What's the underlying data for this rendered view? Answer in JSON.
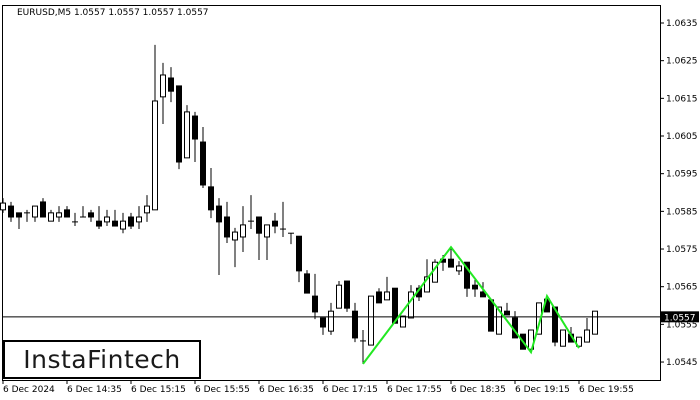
{
  "chart_data": {
    "type": "candlestick",
    "title": "EURUSD,M5  1.0557 1.0557 1.0557 1.0557",
    "symbol": "EURUSD",
    "timeframe": "M5",
    "ylim": [
      1.0541,
      1.064
    ],
    "y_ticks": [
      "1.0635",
      "1.0625",
      "1.0615",
      "1.0605",
      "1.0595",
      "1.0585",
      "1.0575",
      "1.0565",
      "1.0555",
      "1.0545"
    ],
    "x_tick_labels": [
      "6 Dec 2024",
      "6 Dec 14:35",
      "6 Dec 15:15",
      "6 Dec 15:55",
      "6 Dec 16:35",
      "6 Dec 17:15",
      "6 Dec 17:55",
      "6 Dec 18:35",
      "6 Dec 19:15",
      "6 Dec 19:55"
    ],
    "x_tick_every_n_candles": 8,
    "current_price": "1.0557",
    "current_price_value": 1.0557,
    "grid": false,
    "colors": {
      "bull_body": "#ffffff",
      "bear_body": "#000000",
      "pattern_line": "#22e822",
      "price_tag_bg": "#000000"
    },
    "candles_ohlc": [
      [
        1.05854,
        1.05885,
        1.05846,
        1.05872
      ],
      [
        1.05864,
        1.05875,
        1.05822,
        1.05835
      ],
      [
        1.05846,
        1.05846,
        1.05803,
        1.05835
      ],
      [
        1.05846,
        1.05854,
        1.05822,
        1.05846
      ],
      [
        1.05835,
        1.05864,
        1.05822,
        1.05864
      ],
      [
        1.05875,
        1.05885,
        1.05835,
        1.05835
      ],
      [
        1.05824,
        1.05854,
        1.05824,
        1.05846
      ],
      [
        1.05835,
        1.05864,
        1.05822,
        1.05846
      ],
      [
        1.05854,
        1.05864,
        1.05835,
        1.05835
      ],
      [
        1.05822,
        1.05846,
        1.05811,
        1.05822
      ],
      [
        1.05835,
        1.05864,
        1.05835,
        1.05835
      ],
      [
        1.05846,
        1.05854,
        1.05822,
        1.05835
      ],
      [
        1.05824,
        1.05864,
        1.05803,
        1.05811
      ],
      [
        1.05822,
        1.05854,
        1.05811,
        1.05835
      ],
      [
        1.05824,
        1.05854,
        1.05811,
        1.05811
      ],
      [
        1.05803,
        1.05846,
        1.05792,
        1.05824
      ],
      [
        1.05835,
        1.05846,
        1.05803,
        1.05811
      ],
      [
        1.05822,
        1.05864,
        1.05803,
        1.05835
      ],
      [
        1.05846,
        1.05893,
        1.05822,
        1.05864
      ],
      [
        1.05854,
        1.06292,
        1.05854,
        1.06143
      ],
      [
        1.06154,
        1.06244,
        1.06082,
        1.06212
      ],
      [
        1.06204,
        1.06233,
        1.0614,
        1.06169
      ],
      [
        1.06183,
        1.06183,
        1.05962,
        1.05981
      ],
      [
        1.05992,
        1.06132,
        1.05992,
        1.06114
      ],
      [
        1.06103,
        1.06114,
        1.05981,
        1.06042
      ],
      [
        1.06034,
        1.06074,
        1.05912,
        1.0592
      ],
      [
        1.05915,
        1.05965,
        1.05832,
        1.05854
      ],
      [
        1.05864,
        1.05885,
        1.05681,
        1.05822
      ],
      [
        1.05835,
        1.05875,
        1.05766,
        1.05782
      ],
      [
        1.05774,
        1.05806,
        1.05702,
        1.05795
      ],
      [
        1.05782,
        1.05864,
        1.05742,
        1.05814
      ],
      [
        1.05824,
        1.05893,
        1.05803,
        1.05824
      ],
      [
        1.05835,
        1.05835,
        1.05721,
        1.05792
      ],
      [
        1.05782,
        1.05814,
        1.05721,
        1.05814
      ],
      [
        1.05824,
        1.05846,
        1.05792,
        1.05811
      ],
      [
        1.05803,
        1.05875,
        1.05782,
        1.05803
      ],
      [
        1.05792,
        1.05792,
        1.05763,
        1.05792
      ],
      [
        1.05784,
        1.05784,
        1.05662,
        1.05692
      ],
      [
        1.05684,
        1.05694,
        1.05633,
        1.05633
      ],
      [
        1.05625,
        1.05684,
        1.05564,
        1.05583
      ],
      [
        1.05567,
        1.05567,
        1.05522,
        1.05543
      ],
      [
        1.05532,
        1.05607,
        1.05522,
        1.05585
      ],
      [
        1.05593,
        1.05665,
        1.05593,
        1.05654
      ],
      [
        1.05665,
        1.05665,
        1.05583,
        1.05593
      ],
      [
        1.05585,
        1.05607,
        1.05503,
        1.05514
      ],
      [
        1.05506,
        1.05535,
        1.05445,
        1.05506
      ],
      [
        1.05495,
        1.05625,
        1.05495,
        1.05625
      ],
      [
        1.05636,
        1.05646,
        1.05607,
        1.05607
      ],
      [
        1.05615,
        1.05676,
        1.05615,
        1.05636
      ],
      [
        1.05646,
        1.05646,
        1.05553,
        1.05553
      ],
      [
        1.05543,
        1.05572,
        1.05543,
        1.05572
      ],
      [
        1.05567,
        1.05654,
        1.05567,
        1.05636
      ],
      [
        1.05646,
        1.05654,
        1.05612,
        1.05623
      ],
      [
        1.05636,
        1.05723,
        1.05636,
        1.05676
      ],
      [
        1.05662,
        1.05723,
        1.05662,
        1.05715
      ],
      [
        1.05723,
        1.05734,
        1.05692,
        1.05715
      ],
      [
        1.05723,
        1.05755,
        1.05702,
        1.05702
      ],
      [
        1.05692,
        1.05718,
        1.05681,
        1.05705
      ],
      [
        1.05715,
        1.05715,
        1.05623,
        1.05646
      ],
      [
        1.05654,
        1.05668,
        1.05623,
        1.05644
      ],
      [
        1.05636,
        1.05662,
        1.05623,
        1.05623
      ],
      [
        1.05615,
        1.05615,
        1.05532,
        1.05532
      ],
      [
        1.05524,
        1.05596,
        1.05524,
        1.05596
      ],
      [
        1.05585,
        1.05607,
        1.05575,
        1.05575
      ],
      [
        1.05567,
        1.05585,
        1.05514,
        1.05514
      ],
      [
        1.05524,
        1.05524,
        1.05484,
        1.05484
      ],
      [
        1.05484,
        1.05535,
        1.05484,
        1.05535
      ],
      [
        1.05524,
        1.05607,
        1.05524,
        1.05607
      ],
      [
        1.05617,
        1.05625,
        1.05583,
        1.05583
      ],
      [
        1.05596,
        1.05596,
        1.05492,
        1.05503
      ],
      [
        1.05492,
        1.05535,
        1.05492,
        1.05535
      ],
      [
        1.05524,
        1.05543,
        1.05503,
        1.05503
      ],
      [
        1.05492,
        1.05516,
        1.05492,
        1.05516
      ],
      [
        1.05503,
        1.05567,
        1.05503,
        1.05535
      ],
      [
        1.05524,
        1.05585,
        1.05524,
        1.05585
      ]
    ],
    "pattern_line_points": [
      {
        "candle_index": 45,
        "price": 1.05445
      },
      {
        "candle_index": 56,
        "price": 1.05755
      },
      {
        "candle_index": 66,
        "price": 1.05476
      },
      {
        "candle_index": 68,
        "price": 1.05625
      },
      {
        "candle_index": 72,
        "price": 1.05487
      }
    ]
  },
  "logo": {
    "text": "InstaFintech"
  }
}
